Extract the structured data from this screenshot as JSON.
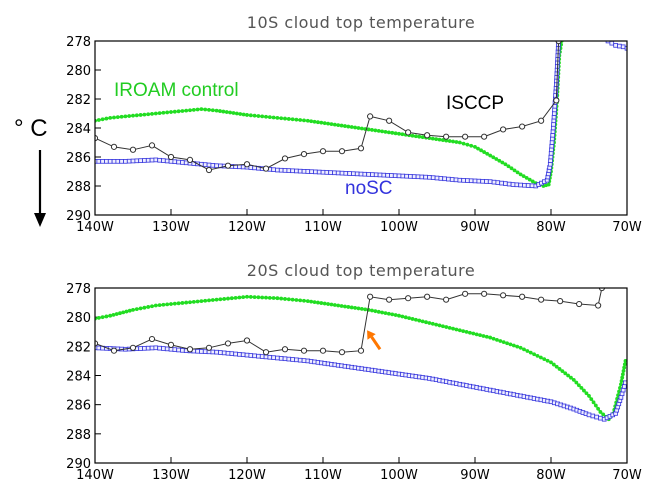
{
  "figure": {
    "unit_label": "° C",
    "unit_direction": "down-arrow"
  },
  "colors": {
    "control": "#22dd22",
    "noSC": "#3333dd",
    "noSC_marker_fill": "#eeeeff",
    "isccp": "#333333",
    "isccp_marker_fill": "#ffffff",
    "arrow": "#ff7700"
  },
  "chart_data": [
    {
      "type": "line",
      "title": "10S cloud top temperature",
      "xlabel": "",
      "ylabel": "° C",
      "xlim": [
        140,
        70
      ],
      "ylim": [
        290,
        278
      ],
      "x_ticks": [
        {
          "value": 140,
          "label": "140W"
        },
        {
          "value": 130,
          "label": "130W"
        },
        {
          "value": 120,
          "label": "120W"
        },
        {
          "value": 110,
          "label": "110W"
        },
        {
          "value": 100,
          "label": "100W"
        },
        {
          "value": 90,
          "label": "90W"
        },
        {
          "value": 80,
          "label": "80W"
        },
        {
          "value": 70,
          "label": "70W"
        }
      ],
      "y_ticks": [
        {
          "value": 278,
          "label": "278"
        },
        {
          "value": 280,
          "label": "280"
        },
        {
          "value": 282,
          "label": "282"
        },
        {
          "value": 284,
          "label": "284"
        },
        {
          "value": 286,
          "label": "286"
        },
        {
          "value": 288,
          "label": "288"
        },
        {
          "value": 290,
          "label": "290"
        }
      ],
      "annotations": [
        {
          "text": "IROAM control",
          "series": "control",
          "at": [
            139.5,
            282.6
          ]
        },
        {
          "text": "ISCCP",
          "series": "isccp",
          "at": [
            96.5,
            283.6
          ]
        },
        {
          "text": "noSC",
          "series": "noSC",
          "at": [
            105.5,
            288.0
          ]
        }
      ],
      "series": [
        {
          "name": "IROAM control",
          "key": "control",
          "marker": "dot",
          "points": [
            [
              140,
              283.5
            ],
            [
              138,
              283.3
            ],
            [
              134,
              283.1
            ],
            [
              130,
              282.9
            ],
            [
              126,
              282.7
            ],
            [
              124,
              282.8
            ],
            [
              120,
              283.1
            ],
            [
              116,
              283.3
            ],
            [
              112,
              283.5
            ],
            [
              108,
              283.8
            ],
            [
              104,
              284.1
            ],
            [
              100,
              284.4
            ],
            [
              96,
              284.7
            ],
            [
              92,
              285.0
            ],
            [
              90,
              285.3
            ],
            [
              88,
              285.9
            ],
            [
              86,
              286.5
            ],
            [
              84,
              287.2
            ],
            [
              82,
              287.8
            ],
            [
              81,
              288.0
            ],
            [
              80.3,
              287.9
            ],
            [
              80,
              287.0
            ],
            [
              79.6,
              285.0
            ],
            [
              79.2,
              282.0
            ],
            [
              78.9,
              279.0
            ],
            [
              78.6,
              278.0
            ]
          ]
        },
        {
          "name": "noSC",
          "key": "noSC",
          "marker": "square",
          "points": [
            [
              140,
              286.3
            ],
            [
              136,
              286.3
            ],
            [
              132,
              286.2
            ],
            [
              128,
              286.4
            ],
            [
              124,
              286.6
            ],
            [
              120,
              286.7
            ],
            [
              116,
              286.9
            ],
            [
              112,
              287.0
            ],
            [
              108,
              287.1
            ],
            [
              104,
              287.2
            ],
            [
              100,
              287.3
            ],
            [
              96,
              287.4
            ],
            [
              92,
              287.6
            ],
            [
              88,
              287.7
            ],
            [
              85,
              287.9
            ],
            [
              82,
              288.0
            ],
            [
              80.5,
              287.6
            ],
            [
              80.1,
              286.5
            ],
            [
              79.7,
              284.0
            ],
            [
              79.3,
              281.0
            ],
            [
              79.0,
              278.0
            ]
          ]
        },
        {
          "name": "noSC (70W edge)",
          "key": "noSC",
          "marker": "square",
          "points": [
            [
              72.5,
              278.0
            ],
            [
              71.5,
              278.3
            ],
            [
              70.5,
              278.4
            ],
            [
              70,
              278.5
            ]
          ]
        },
        {
          "name": "ISCCP",
          "key": "isccp",
          "marker": "circle",
          "points": [
            [
              140,
              284.7
            ],
            [
              137.5,
              285.3
            ],
            [
              135,
              285.5
            ],
            [
              132.5,
              285.2
            ],
            [
              130,
              286.0
            ],
            [
              127.5,
              286.2
            ],
            [
              125,
              286.9
            ],
            [
              122.5,
              286.6
            ],
            [
              120,
              286.5
            ],
            [
              117.5,
              286.8
            ],
            [
              115,
              286.1
            ],
            [
              112.5,
              285.8
            ],
            [
              110,
              285.6
            ],
            [
              107.5,
              285.6
            ],
            [
              105,
              285.4
            ],
            [
              103.8,
              283.2
            ],
            [
              101.3,
              283.5
            ],
            [
              98.8,
              284.3
            ],
            [
              96.3,
              284.5
            ],
            [
              93.8,
              284.6
            ],
            [
              91.3,
              284.6
            ],
            [
              88.8,
              284.6
            ],
            [
              86.3,
              284.1
            ],
            [
              83.8,
              283.9
            ],
            [
              81.3,
              283.5
            ],
            [
              79.3,
              282.1
            ],
            [
              79.0,
              278.0
            ]
          ]
        }
      ]
    },
    {
      "type": "line",
      "title": "20S cloud top temperature",
      "xlabel": "",
      "ylabel": "° C",
      "xlim": [
        140,
        70
      ],
      "ylim": [
        290,
        278
      ],
      "x_ticks": [
        {
          "value": 140,
          "label": "140W"
        },
        {
          "value": 130,
          "label": "130W"
        },
        {
          "value": 120,
          "label": "120W"
        },
        {
          "value": 110,
          "label": "110W"
        },
        {
          "value": 100,
          "label": "100W"
        },
        {
          "value": 90,
          "label": "90W"
        },
        {
          "value": 80,
          "label": "80W"
        },
        {
          "value": 70,
          "label": "70W"
        }
      ],
      "y_ticks": [
        {
          "value": 278,
          "label": "278"
        },
        {
          "value": 280,
          "label": "280"
        },
        {
          "value": 282,
          "label": "282"
        },
        {
          "value": 284,
          "label": "284"
        },
        {
          "value": 286,
          "label": "286"
        },
        {
          "value": 288,
          "label": "288"
        },
        {
          "value": 290,
          "label": "290"
        }
      ],
      "arrow_annotation": {
        "from": [
          102.5,
          282.2
        ],
        "to": [
          104.2,
          280.9
        ]
      },
      "series": [
        {
          "name": "IROAM control",
          "key": "control",
          "marker": "dot",
          "points": [
            [
              140,
              280.1
            ],
            [
              138,
              279.9
            ],
            [
              135,
              279.5
            ],
            [
              132,
              279.2
            ],
            [
              128,
              279.0
            ],
            [
              124,
              278.8
            ],
            [
              120,
              278.6
            ],
            [
              116,
              278.7
            ],
            [
              112,
              278.9
            ],
            [
              108,
              279.2
            ],
            [
              104,
              279.5
            ],
            [
              100,
              279.9
            ],
            [
              96,
              280.4
            ],
            [
              92,
              280.9
            ],
            [
              88,
              281.4
            ],
            [
              84,
              282.1
            ],
            [
              80,
              283.1
            ],
            [
              77,
              284.3
            ],
            [
              75,
              285.4
            ],
            [
              73.5,
              286.5
            ],
            [
              72.4,
              287.0
            ],
            [
              71.8,
              286.6
            ],
            [
              70.8,
              284.6
            ],
            [
              70.2,
              283.0
            ]
          ]
        },
        {
          "name": "noSC",
          "key": "noSC",
          "marker": "square",
          "points": [
            [
              140,
              282.1
            ],
            [
              136,
              282.2
            ],
            [
              132,
              282.1
            ],
            [
              128,
              282.3
            ],
            [
              124,
              282.4
            ],
            [
              120,
              282.6
            ],
            [
              116,
              282.8
            ],
            [
              112,
              283.0
            ],
            [
              108,
              283.3
            ],
            [
              104,
              283.6
            ],
            [
              100,
              283.9
            ],
            [
              96,
              284.2
            ],
            [
              92,
              284.6
            ],
            [
              88,
              285.0
            ],
            [
              84,
              285.4
            ],
            [
              80,
              285.8
            ],
            [
              77,
              286.3
            ],
            [
              75,
              286.7
            ],
            [
              73,
              287.0
            ],
            [
              71.5,
              286.6
            ],
            [
              70.8,
              285.5
            ],
            [
              70.2,
              284.5
            ]
          ]
        },
        {
          "name": "ISCCP",
          "key": "isccp",
          "marker": "circle",
          "points": [
            [
              140,
              281.8
            ],
            [
              137.5,
              282.3
            ],
            [
              135,
              282.1
            ],
            [
              132.5,
              281.5
            ],
            [
              130,
              281.9
            ],
            [
              127.5,
              282.2
            ],
            [
              125,
              282.1
            ],
            [
              122.5,
              281.8
            ],
            [
              120,
              281.6
            ],
            [
              117.5,
              282.4
            ],
            [
              115,
              282.2
            ],
            [
              112.5,
              282.3
            ],
            [
              110,
              282.3
            ],
            [
              107.5,
              282.4
            ],
            [
              105,
              282.3
            ],
            [
              103.8,
              278.6
            ],
            [
              101.3,
              278.8
            ],
            [
              98.8,
              278.7
            ],
            [
              96.3,
              278.6
            ],
            [
              93.8,
              278.8
            ],
            [
              91.3,
              278.4
            ],
            [
              88.8,
              278.4
            ],
            [
              86.3,
              278.5
            ],
            [
              83.8,
              278.6
            ],
            [
              81.3,
              278.8
            ],
            [
              78.8,
              278.9
            ],
            [
              76.3,
              279.1
            ],
            [
              73.8,
              279.2
            ],
            [
              73.3,
              278.0
            ]
          ]
        }
      ]
    }
  ]
}
